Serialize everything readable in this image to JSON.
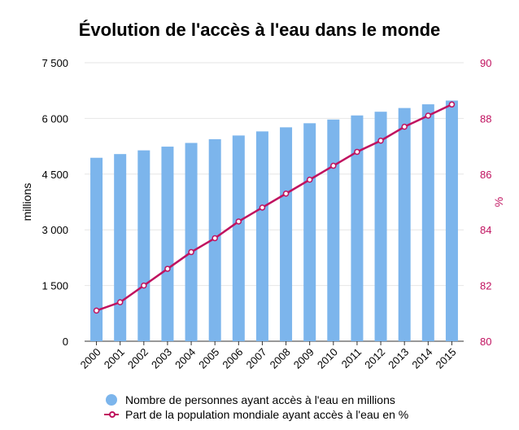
{
  "chart_data": {
    "type": "bar",
    "title": "Évolution de l'accès à l'eau dans le monde",
    "categories": [
      "2000",
      "2001",
      "2002",
      "2003",
      "2004",
      "2005",
      "2006",
      "2007",
      "2008",
      "2009",
      "2010",
      "2011",
      "2012",
      "2013",
      "2014",
      "2015"
    ],
    "series": [
      {
        "name": "Nombre de personnes ayant accès à l'eau en millions",
        "type": "bar",
        "axis": "left",
        "color": "#7cb5ec",
        "values": [
          4940,
          5040,
          5140,
          5240,
          5340,
          5440,
          5540,
          5650,
          5760,
          5870,
          5970,
          6080,
          6180,
          6280,
          6380,
          6480
        ]
      },
      {
        "name": "Part de la population mondiale ayant accès à l'eau en %",
        "type": "line",
        "axis": "right",
        "color": "#c0125f",
        "values": [
          81.1,
          81.4,
          82.0,
          82.6,
          83.2,
          83.7,
          84.3,
          84.8,
          85.3,
          85.8,
          86.3,
          86.8,
          87.2,
          87.7,
          88.1,
          88.5
        ]
      }
    ],
    "y_left": {
      "label": "millions",
      "ylim": [
        0,
        7500
      ],
      "ticks": [
        0,
        1500,
        3000,
        4500,
        6000,
        7500
      ],
      "tick_labels": [
        "0",
        "1 500",
        "3 000",
        "4 500",
        "6 000",
        "7 500"
      ]
    },
    "y_right": {
      "label": "%",
      "ylim": [
        80,
        90
      ],
      "ticks": [
        80,
        82,
        84,
        86,
        88,
        90
      ],
      "tick_labels": [
        "80",
        "82",
        "84",
        "86",
        "88",
        "90"
      ],
      "color": "#c0125f"
    },
    "grid": true,
    "legend_position": "bottom"
  }
}
